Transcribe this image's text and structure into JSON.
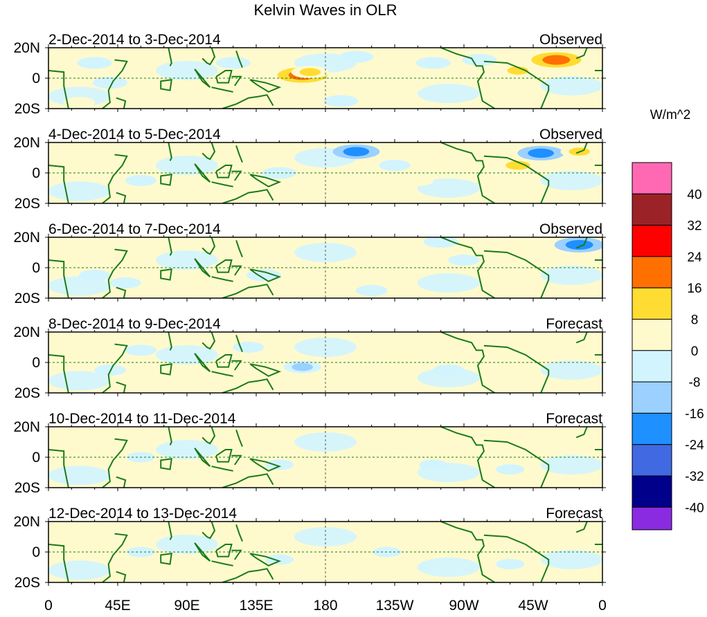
{
  "title": "Kelvin Waves in OLR",
  "units": "W/m^2",
  "y_ticks": [
    "20N",
    "0",
    "20S"
  ],
  "y_tick_lats": [
    20,
    0,
    -20
  ],
  "x_ticks": [
    "0",
    "45E",
    "90E",
    "135E",
    "180",
    "135W",
    "90W",
    "45W",
    "0"
  ],
  "x_tick_lons": [
    0,
    45,
    90,
    135,
    180,
    225,
    270,
    315,
    360
  ],
  "colorbar": {
    "labels": [
      "40",
      "32",
      "24",
      "16",
      "8",
      "0",
      "-8",
      "-16",
      "-24",
      "-32",
      "-40"
    ],
    "colors": [
      "#ff69b4",
      "#9b2226",
      "#ff0000",
      "#ff7000",
      "#ffdc32",
      "#fffacd",
      "#d2f4ff",
      "#9cd0ff",
      "#1e90ff",
      "#4169e1",
      "#00008b",
      "#8a2be2"
    ]
  },
  "panels": [
    {
      "dates": "2-Dec-2014 to 3-Dec-2014",
      "type": "Observed",
      "anomalies": [
        [
          165,
          2,
          20
        ],
        [
          170,
          4,
          12
        ],
        [
          330,
          12,
          20
        ],
        [
          305,
          5,
          12
        ],
        [
          200,
          14,
          -10
        ],
        [
          250,
          10,
          -10
        ],
        [
          280,
          12,
          -10
        ],
        [
          120,
          10,
          -10
        ],
        [
          30,
          10,
          -10
        ],
        [
          40,
          -3,
          -10
        ],
        [
          190,
          -15,
          -10
        ],
        [
          235,
          -5,
          8
        ],
        [
          100,
          -14,
          8
        ],
        [
          20,
          -16,
          8
        ]
      ]
    },
    {
      "dates": "4-Dec-2014 to 5-Dec-2014",
      "type": "Observed",
      "anomalies": [
        [
          200,
          14,
          -18
        ],
        [
          320,
          13,
          -18
        ],
        [
          305,
          5,
          16
        ],
        [
          345,
          14,
          12
        ],
        [
          190,
          -5,
          8
        ],
        [
          240,
          -5,
          8
        ],
        [
          120,
          5,
          8
        ],
        [
          130,
          14,
          8
        ],
        [
          250,
          14,
          8
        ],
        [
          60,
          -5,
          -8
        ],
        [
          150,
          0,
          -10
        ],
        [
          225,
          5,
          -8
        ]
      ]
    },
    {
      "dates": "6-Dec-2014 to 7-Dec-2014",
      "type": "Observed",
      "anomalies": [
        [
          345,
          15,
          -20
        ],
        [
          320,
          5,
          10
        ],
        [
          115,
          0,
          8
        ],
        [
          110,
          -12,
          10
        ],
        [
          140,
          -5,
          -10
        ],
        [
          270,
          5,
          -8
        ],
        [
          255,
          17,
          -10
        ],
        [
          30,
          -5,
          -8
        ],
        [
          50,
          -10,
          -8
        ],
        [
          210,
          -15,
          -8
        ]
      ]
    },
    {
      "dates": "8-Dec-2014 to 9-Dec-2014",
      "type": "Forecast",
      "anomalies": [
        [
          120,
          -8,
          10
        ],
        [
          165,
          -3,
          -12
        ],
        [
          130,
          10,
          -8
        ],
        [
          325,
          12,
          8
        ],
        [
          60,
          8,
          -8
        ],
        [
          40,
          -5,
          -8
        ],
        [
          260,
          -5,
          -8
        ]
      ]
    },
    {
      "dates": "10-Dec-2014 to 11-Dec-2014",
      "type": "Forecast",
      "anomalies": [
        [
          60,
          0,
          -6
        ],
        [
          150,
          -5,
          -6
        ],
        [
          250,
          -5,
          -6
        ],
        [
          300,
          -8,
          -6
        ]
      ]
    },
    {
      "dates": "12-Dec-2014 to 13-Dec-2014",
      "type": "Forecast",
      "anomalies": [
        [
          60,
          0,
          -6
        ],
        [
          150,
          -5,
          -6
        ],
        [
          220,
          0,
          -6
        ],
        [
          300,
          -8,
          -6
        ]
      ]
    }
  ]
}
